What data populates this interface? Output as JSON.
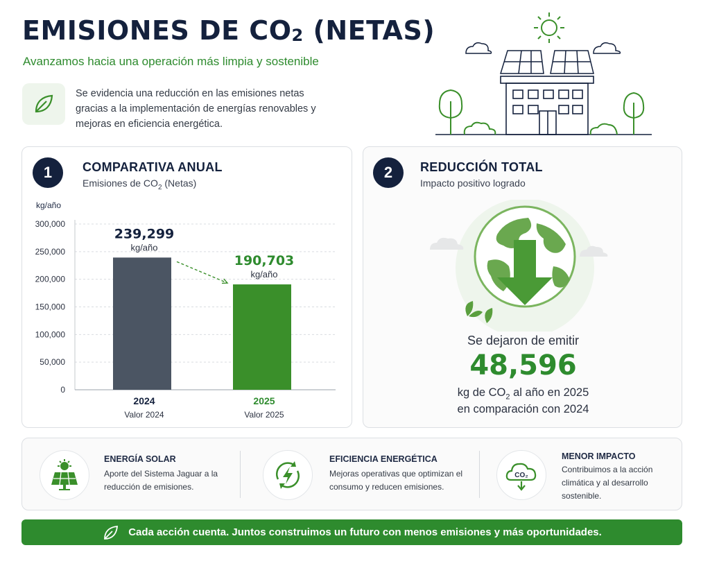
{
  "header": {
    "title_main": "EMISIONES DE CO",
    "title_sub": "2",
    "title_end": " (NETAS)",
    "subtitle": "Avanzamos hacia una operación más limpia y sostenible",
    "intro": "Se evidencia una reducción en las emisiones netas gracias a la implementación de energías renovables y mejoras en eficiencia energética."
  },
  "card1": {
    "number": "1",
    "title": "COMPARATIVA ANUAL",
    "subtitle_main": "Emisiones de CO",
    "subtitle_sub": "2",
    "subtitle_end": " (Netas)"
  },
  "card2": {
    "number": "2",
    "title": "REDUCCIÓN TOTAL",
    "subtitle": "Impacto positivo logrado",
    "lead": "Se dejaron de emitir",
    "big_value": "48,596",
    "line1_main": "kg de CO",
    "line1_sub": "2",
    "line1_end": " al año en 2025",
    "line2": "en comparación con 2024"
  },
  "chart_data": {
    "type": "bar",
    "ylabel": "kg/año",
    "ylim": [
      0,
      300000
    ],
    "yticks": [
      0,
      50000,
      100000,
      150000,
      200000,
      250000,
      300000
    ],
    "ytick_labels": [
      "0",
      "50,000",
      "100,000",
      "150,000",
      "200,000",
      "250,000",
      "300,000"
    ],
    "categories": [
      "2024",
      "2025"
    ],
    "category_sublabels": [
      "Valor 2024",
      "Valor 2025"
    ],
    "values": [
      239299,
      190703
    ],
    "value_labels": [
      "239,299",
      "190,703"
    ],
    "value_unit": "kg/año",
    "colors": [
      "#4b5563",
      "#3a8f2a"
    ],
    "grid": true
  },
  "features": [
    {
      "title": "ENERGÍA SOLAR",
      "desc": "Aporte del Sistema Jaguar a la reducción de emisiones.",
      "icon": "solar-panel-icon"
    },
    {
      "title": "EFICIENCIA ENERGÉTICA",
      "desc": "Mejoras operativas que optimizan el consumo y reducen emisiones.",
      "icon": "energy-bolt-icon"
    },
    {
      "title": "MENOR IMPACTO",
      "desc": "Contribuimos a la acción climática y al desarrollo sostenible.",
      "icon": "co2-cloud-icon",
      "icon_text": "CO₂"
    }
  ],
  "banner": "Cada acción cuenta. Juntos construimos un futuro con menos emisiones y más oportunidades.",
  "colors": {
    "navy": "#14213d",
    "green": "#2e8b2e",
    "gray_bar": "#4b5563"
  }
}
